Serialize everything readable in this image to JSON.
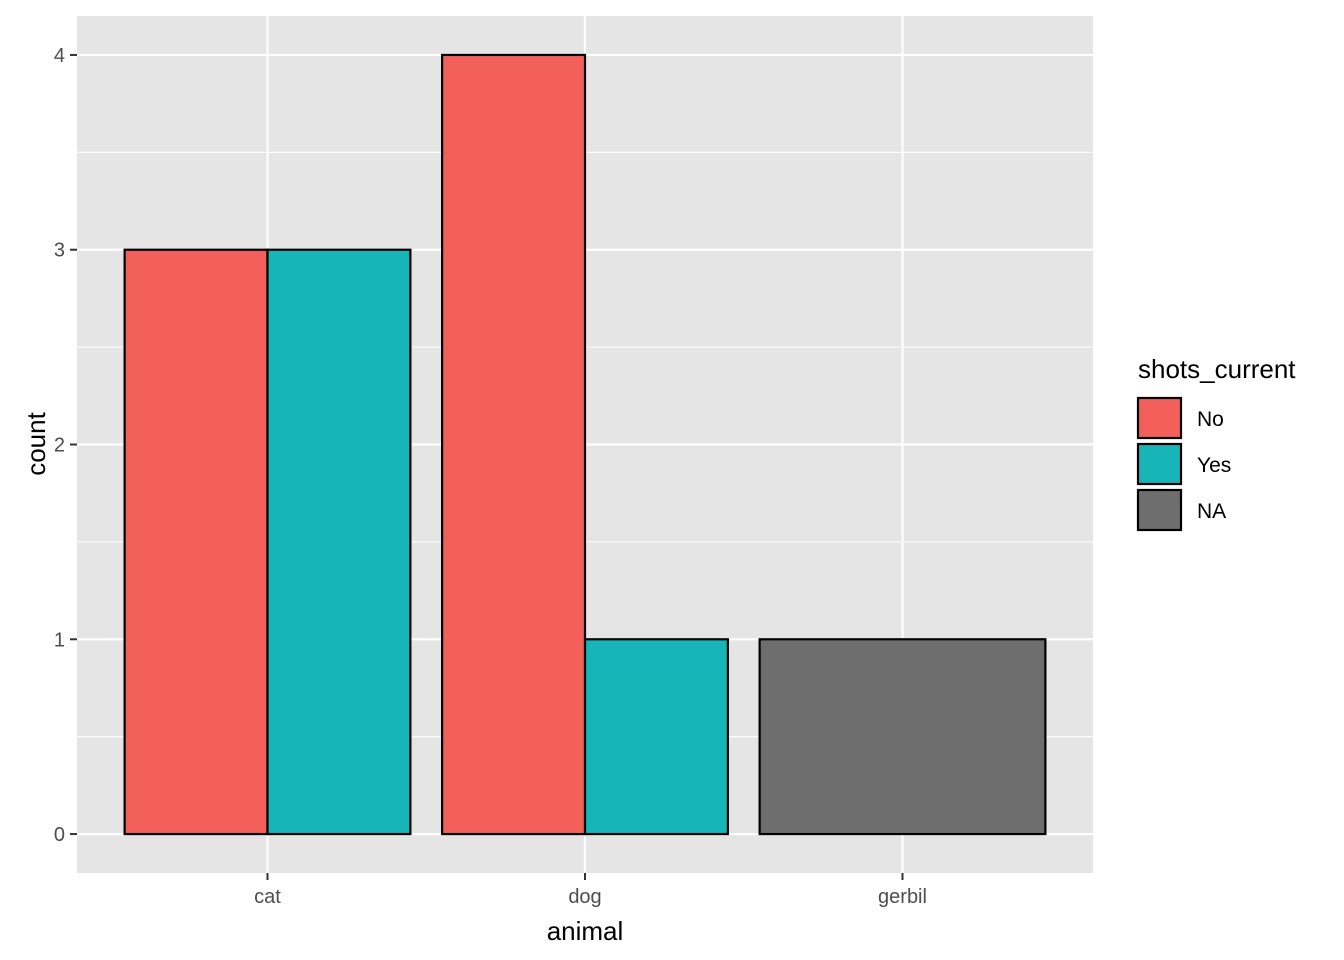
{
  "chart_data": {
    "type": "bar",
    "layout": "dodge",
    "categories": [
      "cat",
      "dog",
      "gerbil"
    ],
    "groups": [
      {
        "category": "cat",
        "bars": [
          {
            "fill": "No",
            "value": 3
          },
          {
            "fill": "Yes",
            "value": 3
          }
        ]
      },
      {
        "category": "dog",
        "bars": [
          {
            "fill": "No",
            "value": 4
          },
          {
            "fill": "Yes",
            "value": 1
          }
        ]
      },
      {
        "category": "gerbil",
        "bars": [
          {
            "fill": "NA",
            "value": 1
          }
        ]
      }
    ],
    "xlabel": "animal",
    "ylabel": "count",
    "ylim": [
      -0.2,
      4.2
    ],
    "yticks": [
      "0",
      "1",
      "2",
      "3",
      "4"
    ],
    "grid": true,
    "legend": {
      "title": "shots_current",
      "position": "right",
      "entries": [
        {
          "label": "No",
          "color": "#F8766D"
        },
        {
          "label": "Yes",
          "color": "#00BFC4"
        },
        {
          "label": "NA",
          "color": "#6E6E6E"
        }
      ]
    },
    "colors": {
      "panel": "#E5E5E5",
      "grid": "#FFFFFF",
      "bar_outline": "#000000",
      "No": "#F3605C",
      "Yes": "#17B4B8",
      "NA": "#6E6E6E"
    }
  }
}
